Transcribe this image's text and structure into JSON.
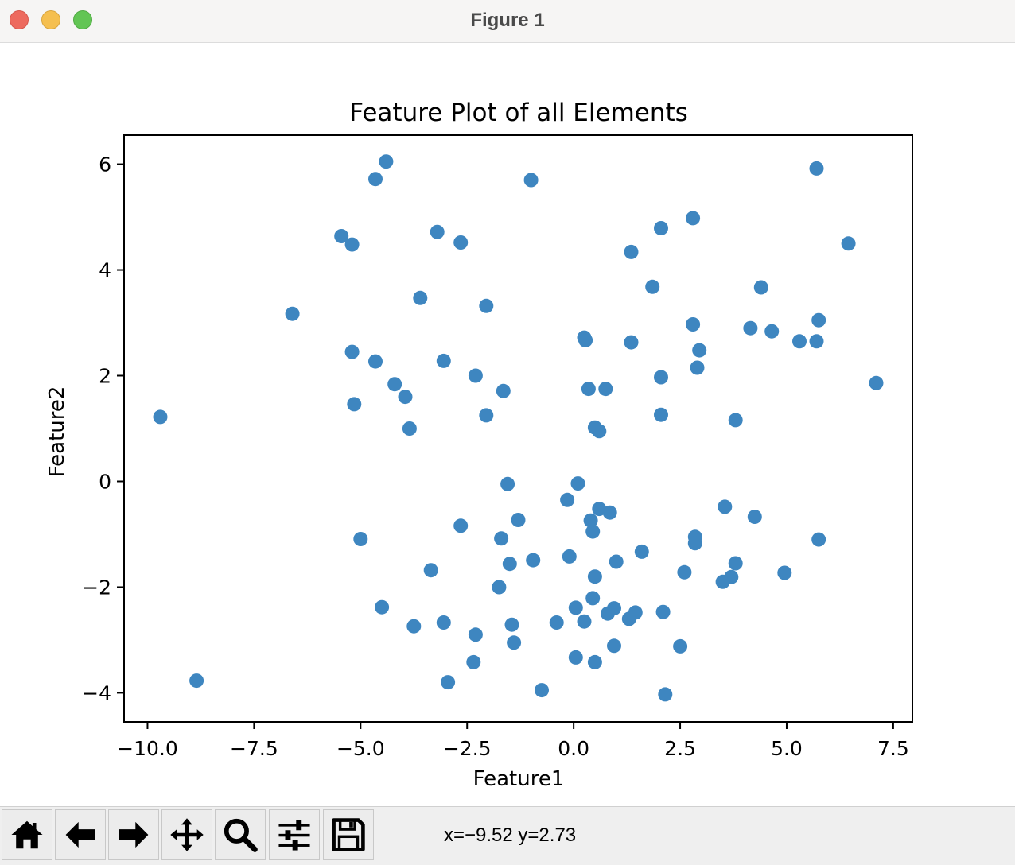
{
  "window": {
    "title": "Figure 1"
  },
  "status": {
    "coords": "x=−9.52 y=2.73"
  },
  "toolbar": {
    "buttons": [
      {
        "icon": "home-icon"
      },
      {
        "icon": "back-arrow-icon"
      },
      {
        "icon": "forward-arrow-icon"
      },
      {
        "icon": "pan-move-icon"
      },
      {
        "icon": "zoom-magnifier-icon"
      },
      {
        "icon": "configure-subplots-icon"
      },
      {
        "icon": "save-floppy-icon"
      }
    ]
  },
  "colors": {
    "points": "#3e86c0",
    "titlebar": "#f6f5f4",
    "toolbar": "#efefef"
  },
  "chart_data": {
    "type": "scatter",
    "title": "Feature Plot of all Elements",
    "xlabel": "Feature1",
    "ylabel": "Feature2",
    "xlim": [
      -10.55,
      7.95
    ],
    "ylim": [
      -4.55,
      6.55
    ],
    "xticks": [
      -10.0,
      -7.5,
      -5.0,
      -2.5,
      0.0,
      2.5,
      5.0,
      7.5
    ],
    "xtick_labels": [
      "−10.0",
      "−7.5",
      "−5.0",
      "−2.5",
      "0.0",
      "2.5",
      "5.0",
      "7.5"
    ],
    "yticks": [
      -4,
      -2,
      0,
      2,
      4,
      6
    ],
    "ytick_labels": [
      "−4",
      "−2",
      "0",
      "2",
      "4",
      "6"
    ],
    "grid": false,
    "legend": "none",
    "points": [
      [
        -4.4,
        6.05
      ],
      [
        -4.65,
        5.72
      ],
      [
        -1.0,
        5.7
      ],
      [
        5.7,
        5.92
      ],
      [
        -5.45,
        4.64
      ],
      [
        -5.2,
        4.48
      ],
      [
        -3.2,
        4.72
      ],
      [
        -2.65,
        4.52
      ],
      [
        2.8,
        4.98
      ],
      [
        2.05,
        4.79
      ],
      [
        1.35,
        4.34
      ],
      [
        6.45,
        4.5
      ],
      [
        -6.6,
        3.17
      ],
      [
        -3.6,
        3.47
      ],
      [
        -2.05,
        3.32
      ],
      [
        1.85,
        3.68
      ],
      [
        4.4,
        3.67
      ],
      [
        2.8,
        2.97
      ],
      [
        4.15,
        2.9
      ],
      [
        4.65,
        2.84
      ],
      [
        5.75,
        3.05
      ],
      [
        5.3,
        2.65
      ],
      [
        5.7,
        2.65
      ],
      [
        0.25,
        2.72
      ],
      [
        0.28,
        2.67
      ],
      [
        1.35,
        2.63
      ],
      [
        2.95,
        2.48
      ],
      [
        -5.2,
        2.45
      ],
      [
        -4.65,
        2.27
      ],
      [
        -3.05,
        2.28
      ],
      [
        -2.3,
        2.0
      ],
      [
        2.05,
        1.97
      ],
      [
        2.9,
        2.15
      ],
      [
        7.1,
        1.86
      ],
      [
        -9.7,
        1.22
      ],
      [
        -4.2,
        1.84
      ],
      [
        -3.95,
        1.6
      ],
      [
        -1.65,
        1.71
      ],
      [
        0.35,
        1.75
      ],
      [
        0.75,
        1.75
      ],
      [
        -5.15,
        1.46
      ],
      [
        -2.05,
        1.25
      ],
      [
        2.05,
        1.26
      ],
      [
        3.8,
        1.16
      ],
      [
        -3.85,
        1.0
      ],
      [
        0.5,
        1.02
      ],
      [
        0.6,
        0.95
      ],
      [
        -1.55,
        -0.05
      ],
      [
        0.1,
        -0.04
      ],
      [
        -0.15,
        -0.35
      ],
      [
        0.6,
        -0.52
      ],
      [
        0.85,
        -0.59
      ],
      [
        3.55,
        -0.48
      ],
      [
        4.25,
        -0.67
      ],
      [
        -2.65,
        -0.84
      ],
      [
        -1.3,
        -0.73
      ],
      [
        0.4,
        -0.74
      ],
      [
        0.45,
        -0.95
      ],
      [
        2.85,
        -1.05
      ],
      [
        2.85,
        -1.17
      ],
      [
        -5.0,
        -1.09
      ],
      [
        -1.7,
        -1.08
      ],
      [
        5.75,
        -1.1
      ],
      [
        1.6,
        -1.33
      ],
      [
        -1.5,
        -1.56
      ],
      [
        -0.95,
        -1.49
      ],
      [
        -0.1,
        -1.42
      ],
      [
        1.0,
        -1.52
      ],
      [
        3.8,
        -1.55
      ],
      [
        -3.35,
        -1.68
      ],
      [
        0.5,
        -1.8
      ],
      [
        2.6,
        -1.72
      ],
      [
        3.7,
        -1.81
      ],
      [
        3.5,
        -1.9
      ],
      [
        4.95,
        -1.73
      ],
      [
        -1.75,
        -2.0
      ],
      [
        0.45,
        -2.21
      ],
      [
        -4.5,
        -2.38
      ],
      [
        0.05,
        -2.39
      ],
      [
        0.8,
        -2.5
      ],
      [
        0.95,
        -2.4
      ],
      [
        1.45,
        -2.48
      ],
      [
        2.1,
        -2.47
      ],
      [
        1.3,
        -2.6
      ],
      [
        0.25,
        -2.65
      ],
      [
        -0.4,
        -2.67
      ],
      [
        -3.75,
        -2.74
      ],
      [
        -3.05,
        -2.67
      ],
      [
        -1.45,
        -2.71
      ],
      [
        -2.3,
        -2.9
      ],
      [
        -1.4,
        -3.05
      ],
      [
        0.95,
        -3.11
      ],
      [
        2.5,
        -3.12
      ],
      [
        0.05,
        -3.33
      ],
      [
        0.5,
        -3.42
      ],
      [
        -2.35,
        -3.42
      ],
      [
        -8.85,
        -3.77
      ],
      [
        -2.95,
        -3.8
      ],
      [
        -0.75,
        -3.95
      ],
      [
        2.15,
        -4.03
      ]
    ]
  }
}
